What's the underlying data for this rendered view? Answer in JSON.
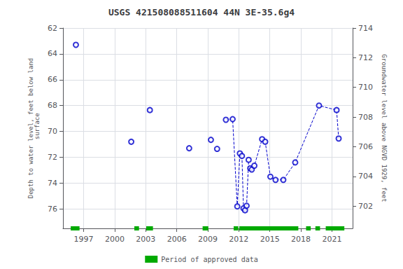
{
  "chart_data": {
    "type": "scatter",
    "title": "USGS 421508088511604 44N 3E-35.6g4",
    "ylabel": "Depth to water level, feet below land\n surface",
    "y2label": "Groundwater level above NGVD 1929, feet",
    "xlim": [
      1995.0,
      2023.0
    ],
    "xticks": [
      1997,
      2000,
      2003,
      2006,
      2009,
      2012,
      2015,
      2018,
      2021
    ],
    "ylim": [
      77.5,
      62
    ],
    "yticks": [
      62,
      64,
      66,
      68,
      70,
      72,
      74,
      76
    ],
    "y2lim": [
      700.5,
      714
    ],
    "y2ticks": [
      702,
      704,
      706,
      708,
      710,
      712,
      714
    ],
    "grid": true,
    "legend": "bottom",
    "series": [
      {
        "type": "scatter",
        "color": "#0000cc",
        "marker": "open_circle",
        "x": [
          1996.25,
          2001.6,
          2003.4,
          2007.2,
          2009.3,
          2009.9,
          2010.75,
          2011.4,
          2011.85,
          2012.1,
          2012.3,
          2012.45,
          2012.6,
          2012.75,
          2012.95,
          2013.1,
          2013.25,
          2013.5,
          2014.25,
          2014.55,
          2015.05,
          2015.55,
          2016.3,
          2017.45,
          2019.75,
          2021.45,
          2021.65
        ],
        "values": [
          63.3,
          70.8,
          68.35,
          71.3,
          70.65,
          71.35,
          69.1,
          69.05,
          75.8,
          71.7,
          71.9,
          75.95,
          76.1,
          75.75,
          72.2,
          72.85,
          72.95,
          72.65,
          70.6,
          70.8,
          73.5,
          73.75,
          73.75,
          72.4,
          68.0,
          68.35,
          70.55
        ]
      },
      {
        "type": "line",
        "color": "#0000cc",
        "line_style": "dashed",
        "marker": "none",
        "x": [
          2010.75,
          2011.4,
          2011.85,
          2012.1
        ],
        "values": [
          69.1,
          69.05,
          75.8,
          71.7
        ]
      },
      {
        "type": "line",
        "color": "#0000cc",
        "line_style": "dashed",
        "marker": "none",
        "x": [
          2012.3,
          2012.45,
          2012.6,
          2012.75,
          2012.95
        ],
        "values": [
          71.9,
          75.95,
          76.1,
          75.75,
          72.2
        ]
      },
      {
        "type": "line",
        "color": "#0000cc",
        "line_style": "dashed",
        "marker": "none",
        "x": [
          2013.1,
          2013.25,
          2013.5,
          2014.25,
          2014.55,
          2015.05,
          2015.55,
          2016.3,
          2017.45,
          2019.75,
          2021.45,
          2021.65
        ],
        "values": [
          72.85,
          72.95,
          72.65,
          70.6,
          70.8,
          73.5,
          73.75,
          73.75,
          72.4,
          68.0,
          68.35,
          70.55
        ]
      },
      {
        "type": "period",
        "name": "Period of approved data",
        "color": "#00aa00",
        "ranges": [
          [
            1995.75,
            1996.6
          ],
          [
            2001.9,
            2002.35
          ],
          [
            2003.05,
            2003.7
          ],
          [
            2008.5,
            2009.05
          ],
          [
            2011.5,
            2011.95
          ],
          [
            2012.05,
            2017.75
          ],
          [
            2018.5,
            2018.95
          ],
          [
            2019.4,
            2019.85
          ],
          [
            2020.4,
            2022.2
          ]
        ]
      }
    ]
  }
}
